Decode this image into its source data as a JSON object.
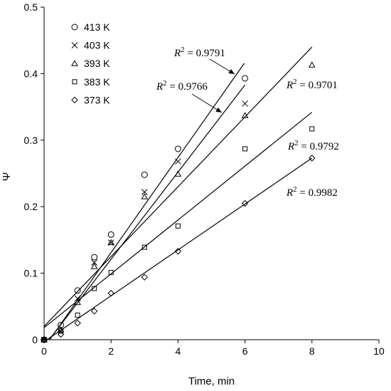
{
  "chart_data": {
    "type": "scatter",
    "title": "",
    "xlabel": "Time, min",
    "ylabel": "Ψ",
    "xlim": [
      0,
      10
    ],
    "ylim": [
      0,
      0.5
    ],
    "xticks": [
      "0",
      "2",
      "4",
      "6",
      "8",
      "10"
    ],
    "yticks": [
      "0",
      "0.1",
      "0.2",
      "0.3",
      "0.4",
      "0.5"
    ],
    "grid": false,
    "legend_position": "top-left",
    "series": [
      {
        "name": "413 K",
        "marker": "circle",
        "points": [
          [
            0,
            0
          ],
          [
            0.5,
            0.022
          ],
          [
            1,
            0.074
          ],
          [
            1.5,
            0.124
          ],
          [
            2,
            0.158
          ],
          [
            3,
            0.248
          ],
          [
            4,
            0.287
          ],
          [
            6,
            0.393
          ]
        ],
        "fit": {
          "slope": 0.0715,
          "intercept": -0.012,
          "x_end": 5.98
        },
        "r2_label": "R² = 0.9791"
      },
      {
        "name": "403 K",
        "marker": "x",
        "points": [
          [
            0,
            0
          ],
          [
            0.5,
            0.012
          ],
          [
            1,
            0.062
          ],
          [
            1.5,
            0.116
          ],
          [
            2,
            0.146
          ],
          [
            3,
            0.222
          ],
          [
            4,
            0.268
          ],
          [
            6,
            0.355
          ]
        ],
        "fit": {
          "slope": 0.0655,
          "intercept": -0.01,
          "x_end": 6.0
        },
        "r2_label": "R² = 0.9766"
      },
      {
        "name": "393 K",
        "marker": "triangle",
        "points": [
          [
            0,
            0
          ],
          [
            0.5,
            0.015
          ],
          [
            1,
            0.056
          ],
          [
            1.5,
            0.11
          ],
          [
            2,
            0.146
          ],
          [
            3,
            0.215
          ],
          [
            4,
            0.249
          ],
          [
            6,
            0.337
          ],
          [
            8,
            0.413
          ]
        ],
        "fit": {
          "slope": 0.0525,
          "intercept": 0.02,
          "x_end": 8.0
        },
        "r2_label": "R² = 0.9701"
      },
      {
        "name": "383 K",
        "marker": "square",
        "points": [
          [
            0,
            0
          ],
          [
            0.5,
            0.013
          ],
          [
            1,
            0.037
          ],
          [
            1.5,
            0.077
          ],
          [
            2,
            0.101
          ],
          [
            3,
            0.139
          ],
          [
            4,
            0.171
          ],
          [
            6,
            0.287
          ],
          [
            8,
            0.317
          ]
        ],
        "fit": {
          "slope": 0.0405,
          "intercept": 0.018,
          "x_end": 8.0
        },
        "r2_label": "R² = 0.9792"
      },
      {
        "name": "373 K",
        "marker": "diamond",
        "points": [
          [
            0,
            0
          ],
          [
            0.5,
            0.008
          ],
          [
            1,
            0.025
          ],
          [
            1.5,
            0.043
          ],
          [
            2,
            0.07
          ],
          [
            3,
            0.094
          ],
          [
            4,
            0.133
          ],
          [
            6,
            0.205
          ],
          [
            8,
            0.273
          ]
        ],
        "fit": {
          "slope": 0.0345,
          "intercept": -0.003,
          "x_end": 8.0
        },
        "r2_label": "R² = 0.9982"
      }
    ]
  }
}
